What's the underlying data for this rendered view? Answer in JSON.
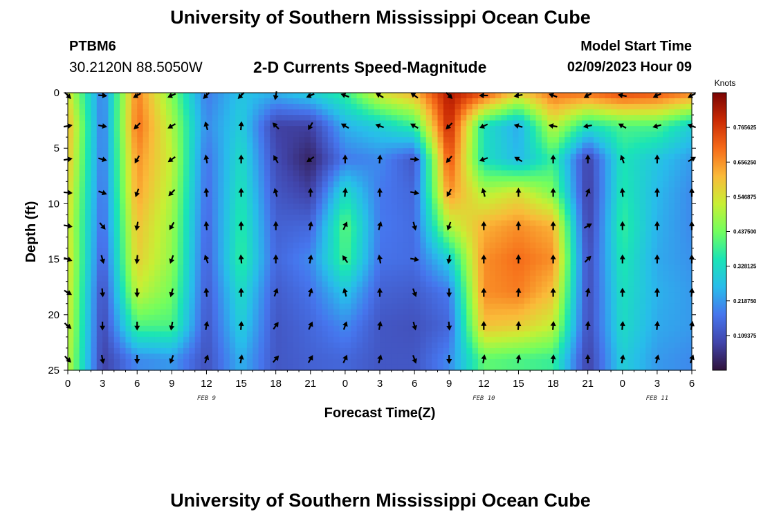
{
  "header": {
    "title": "University of Southern Mississippi Ocean Cube",
    "station": "PTBM6",
    "coords": "30.2120N  88.5050W",
    "subtitle": "2-D Currents Speed-Magnitude",
    "model_start_label": "Model Start Time",
    "model_start_value": "02/09/2023 Hour 09"
  },
  "footer": {
    "title": "University of Southern Mississippi Ocean Cube"
  },
  "chart_data": {
    "type": "heatmap",
    "title": "2-D Currents Speed-Magnitude",
    "xlabel": "Forecast Time(Z)",
    "ylabel": "Depth (ft)",
    "x_ticks": [
      "0",
      "3",
      "6",
      "9",
      "12",
      "15",
      "18",
      "21",
      "0",
      "3",
      "6",
      "9",
      "12",
      "15",
      "18",
      "21",
      "0",
      "3",
      "6"
    ],
    "x_range": [
      0,
      54
    ],
    "y_ticks": [
      "0",
      "5",
      "10",
      "15",
      "20",
      "25"
    ],
    "y_range": [
      0,
      25
    ],
    "y_inverted": true,
    "day_labels": [
      {
        "text": "FEB 9",
        "x": 12
      },
      {
        "text": "FEB 10",
        "x": 36
      },
      {
        "text": "FEB 11",
        "x": 51
      }
    ],
    "colorbar": {
      "title": "Knots",
      "range": [
        0.0,
        0.875
      ],
      "labels": [
        "0.109375",
        "0.218750",
        "0.328125",
        "0.437500",
        "0.546875",
        "0.656250",
        "0.765625"
      ]
    },
    "columns_x": [
      0,
      3,
      6,
      9,
      12,
      15,
      18,
      21,
      24,
      27,
      30,
      33,
      36,
      39,
      42,
      45,
      48,
      51,
      54
    ],
    "depths": [
      0,
      3,
      6,
      9,
      12,
      15,
      18,
      21,
      24
    ],
    "speed_knots": [
      [
        0.55,
        0.62,
        0.6,
        0.57,
        0.55,
        0.56,
        0.55,
        0.54,
        0.52
      ],
      [
        0.18,
        0.17,
        0.17,
        0.16,
        0.15,
        0.13,
        0.1,
        0.09,
        0.08
      ],
      [
        0.68,
        0.7,
        0.66,
        0.64,
        0.6,
        0.58,
        0.52,
        0.4,
        0.2
      ],
      [
        0.45,
        0.5,
        0.52,
        0.5,
        0.48,
        0.47,
        0.44,
        0.4,
        0.22
      ],
      [
        0.18,
        0.2,
        0.17,
        0.16,
        0.15,
        0.14,
        0.13,
        0.12,
        0.11
      ],
      [
        0.28,
        0.3,
        0.33,
        0.35,
        0.37,
        0.38,
        0.33,
        0.3,
        0.25
      ],
      [
        0.25,
        0.08,
        0.1,
        0.12,
        0.14,
        0.15,
        0.13,
        0.12,
        0.12
      ],
      [
        0.3,
        0.08,
        0.03,
        0.08,
        0.15,
        0.2,
        0.17,
        0.15,
        0.14
      ],
      [
        0.38,
        0.25,
        0.18,
        0.33,
        0.42,
        0.4,
        0.28,
        0.2,
        0.15
      ],
      [
        0.55,
        0.3,
        0.2,
        0.18,
        0.18,
        0.17,
        0.14,
        0.12,
        0.12
      ],
      [
        0.62,
        0.38,
        0.12,
        0.15,
        0.16,
        0.16,
        0.13,
        0.11,
        0.12
      ],
      [
        0.82,
        0.8,
        0.74,
        0.66,
        0.5,
        0.3,
        0.18,
        0.15,
        0.2
      ],
      [
        0.74,
        0.34,
        0.34,
        0.5,
        0.62,
        0.66,
        0.66,
        0.6,
        0.42
      ],
      [
        0.58,
        0.24,
        0.26,
        0.55,
        0.66,
        0.7,
        0.68,
        0.58,
        0.4
      ],
      [
        0.7,
        0.52,
        0.38,
        0.45,
        0.62,
        0.66,
        0.6,
        0.52,
        0.38
      ],
      [
        0.7,
        0.34,
        0.08,
        0.07,
        0.08,
        0.1,
        0.1,
        0.1,
        0.08
      ],
      [
        0.75,
        0.4,
        0.35,
        0.36,
        0.38,
        0.36,
        0.34,
        0.33,
        0.3
      ],
      [
        0.73,
        0.4,
        0.28,
        0.26,
        0.25,
        0.24,
        0.25,
        0.24,
        0.22
      ],
      [
        0.68,
        0.3,
        0.22,
        0.2,
        0.2,
        0.21,
        0.22,
        0.22,
        0.2
      ]
    ],
    "direction_deg": [
      [
        135,
        80,
        80,
        95,
        100,
        110,
        120,
        130,
        135
      ],
      [
        95,
        100,
        105,
        110,
        140,
        165,
        175,
        180,
        170
      ],
      [
        240,
        225,
        210,
        200,
        190,
        185,
        180,
        180,
        180
      ],
      [
        245,
        240,
        235,
        225,
        210,
        200,
        195,
        190,
        200
      ],
      [
        225,
        345,
        350,
        355,
        355,
        340,
        355,
        10,
        20
      ],
      [
        225,
        5,
        0,
        0,
        0,
        355,
        0,
        5,
        10
      ],
      [
        190,
        315,
        330,
        345,
        0,
        0,
        20,
        35,
        40
      ],
      [
        245,
        210,
        235,
        0,
        10,
        10,
        15,
        25,
        30
      ],
      [
        290,
        300,
        0,
        5,
        25,
        325,
        345,
        20,
        25
      ],
      [
        300,
        290,
        5,
        0,
        15,
        350,
        0,
        10,
        15
      ],
      [
        305,
        300,
        95,
        100,
        165,
        100,
        160,
        165,
        160
      ],
      [
        135,
        225,
        220,
        210,
        200,
        190,
        180,
        175,
        180
      ],
      [
        270,
        245,
        250,
        345,
        0,
        0,
        0,
        0,
        10
      ],
      [
        260,
        285,
        300,
        0,
        0,
        0,
        5,
        5,
        10
      ],
      [
        290,
        280,
        0,
        0,
        0,
        0,
        0,
        5,
        5
      ],
      [
        240,
        260,
        0,
        20,
        60,
        45,
        10,
        5,
        0
      ],
      [
        280,
        300,
        340,
        355,
        0,
        0,
        0,
        5,
        10
      ],
      [
        245,
        255,
        0,
        0,
        0,
        0,
        0,
        5,
        15
      ],
      [
        240,
        290,
        60,
        0,
        0,
        0,
        5,
        10,
        20
      ]
    ]
  }
}
